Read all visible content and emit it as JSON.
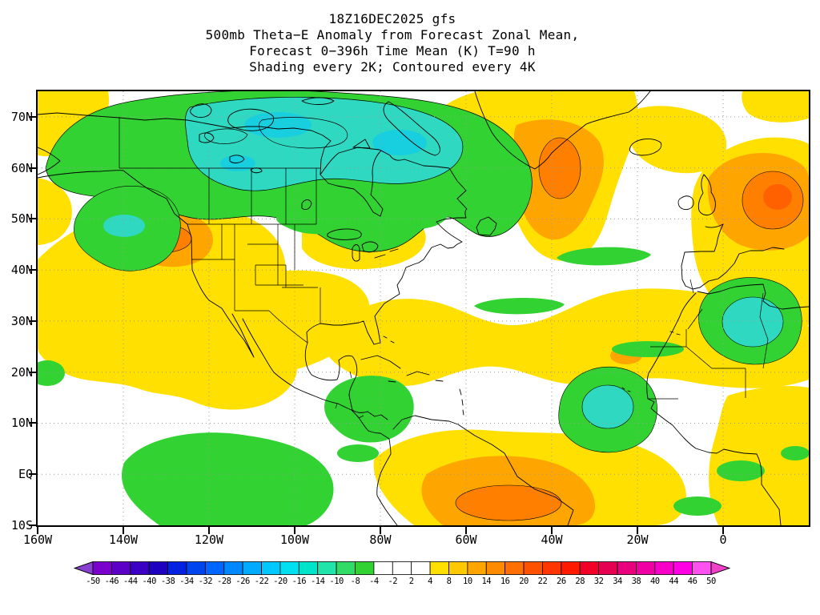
{
  "title": {
    "line1": "18Z16DEC2025 gfs",
    "line2": "500mb Theta−E Anomaly from Forecast Zonal Mean,",
    "line3": "Forecast 0−396h Time Mean (K) T=90 h",
    "line4": "Shading every 2K; Contoured every 4K"
  },
  "chart_data": {
    "type": "heatmap",
    "title": "500mb Theta-E Anomaly from Forecast Zonal Mean, Forecast 0-396h Time Mean (K) T=90 h",
    "model": "gfs",
    "init_time": "18Z16DEC2025",
    "valid": "T=90 h",
    "units": "K",
    "level": "500mb",
    "shading_interval": "2K",
    "contour_interval": "4K",
    "lon_range": [
      "160W",
      "20E"
    ],
    "lat_range": [
      "10S",
      "75N"
    ],
    "x_axis": {
      "labels": [
        "160W",
        "140W",
        "120W",
        "100W",
        "80W",
        "60W",
        "40W",
        "20W",
        "0"
      ],
      "fracs": [
        0,
        0.1111,
        0.2222,
        0.3333,
        0.4444,
        0.5556,
        0.6667,
        0.7778,
        0.8889
      ]
    },
    "y_axis": {
      "labels": [
        "70N",
        "60N",
        "50N",
        "40N",
        "30N",
        "20N",
        "10N",
        "EQ",
        "10S"
      ],
      "fracs": [
        0.0588,
        0.1765,
        0.2941,
        0.4118,
        0.5294,
        0.6471,
        0.7647,
        0.8824,
        1.0
      ]
    },
    "colorbar": {
      "tick_labels": [
        "-50",
        "-46",
        "-44",
        "-40",
        "-38",
        "-34",
        "-32",
        "-28",
        "-26",
        "-22",
        "-20",
        "-16",
        "-14",
        "-10",
        "-8",
        "-4",
        "-2",
        "2",
        "4",
        "8",
        "10",
        "14",
        "16",
        "20",
        "22",
        "26",
        "28",
        "32",
        "34",
        "38",
        "40",
        "44",
        "46",
        "50"
      ],
      "segment_colors": [
        "#7a00cc",
        "#5c00c8",
        "#3c00c4",
        "#1e00c0",
        "#0022e0",
        "#0044f0",
        "#0066ff",
        "#0088ff",
        "#00aaff",
        "#00c8ff",
        "#00e0f0",
        "#00e4cc",
        "#20e4aa",
        "#30dc66",
        "#32d232",
        "#ffffff",
        "#ffffff",
        "#ffffff",
        "#ffe000",
        "#ffc800",
        "#ffa500",
        "#ff8c00",
        "#ff7000",
        "#ff5200",
        "#ff3600",
        "#ff1a00",
        "#f20028",
        "#e60050",
        "#e8007c",
        "#f000a4",
        "#f800c8",
        "#ff00e4",
        "#ff50f0"
      ],
      "left_arrow_color": "#8840d0",
      "right_arrow_color": "#f040c8"
    },
    "palette": {
      "yellow": "#ffe000",
      "orange": "#ffa500",
      "deep_orange": "#ff8000",
      "darkest_orange": "#ff6000",
      "green": "#32d232",
      "cyan": "#2fd8c0",
      "deep_cyan": "#18cfe0",
      "white": "#ffffff"
    },
    "features": [
      {
        "region": "Northern Canada / Canadian Arctic",
        "sign": "negative",
        "approx_range_K": "-8 to -20",
        "shading": "green with large cyan core"
      },
      {
        "region": "Gulf of Alaska / NE Pacific ~48N 140W",
        "sign": "negative",
        "approx_range_K": "-8 to -14",
        "shading": "green with small cyan core"
      },
      {
        "region": "US Pacific Northwest coast ~46N 130W",
        "sign": "positive",
        "approx_range_K": "+8 to +14",
        "shading": "orange core in broad yellow"
      },
      {
        "region": "Atlantic south-east of Greenland ~55-65N 40W",
        "sign": "positive",
        "approx_range_K": "+8 to +14",
        "shading": "orange band in yellow"
      },
      {
        "region": "Western Europe / UK-France",
        "sign": "positive",
        "approx_range_K": "+10 to +16",
        "shading": "strong orange core"
      },
      {
        "region": "Equatorial Atlantic / NE South America",
        "sign": "positive",
        "approx_range_K": "+8 to +14",
        "shading": "orange in yellow"
      },
      {
        "region": "Eastern tropical Atlantic ~13N 25W",
        "sign": "negative",
        "approx_range_K": "-8 to -14",
        "shading": "green with cyan core"
      },
      {
        "region": "Sahara / Algeria-Libya ~25-33N 0-15E",
        "sign": "negative",
        "approx_range_K": "-8 to -14",
        "shading": "green with cyan core"
      },
      {
        "region": "Equatorial East Pacific 10S-5N 140-100W",
        "sign": "negative",
        "approx_range_K": "-4 to -8",
        "shading": "green"
      },
      {
        "region": "Subtropics and mid-latitudes broadly",
        "sign": "positive",
        "approx_range_K": "+4 to +8",
        "shading": "yellow"
      }
    ]
  }
}
